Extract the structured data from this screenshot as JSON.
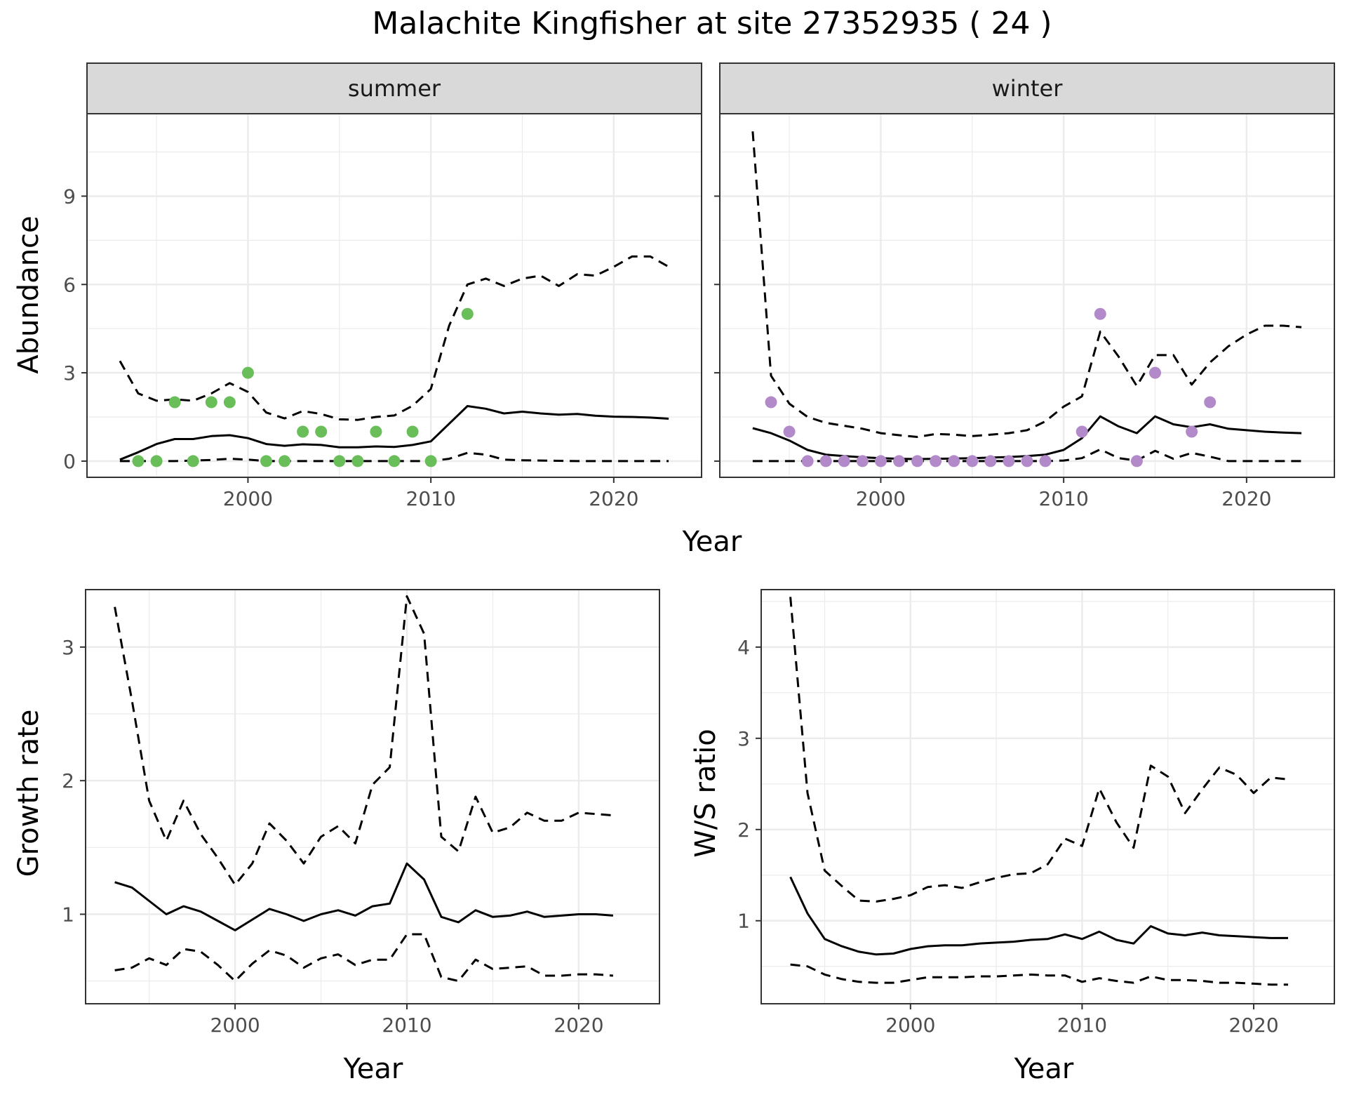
{
  "title": "Malachite Kingfisher at site 27352935 ( 24 )",
  "colors": {
    "summer_points": "#6ABE5A",
    "winter_points": "#B38AC9",
    "lines": "#000000",
    "grid": "#EBEBEB",
    "strip_fill": "#D9D9D9"
  },
  "chart_data": [
    {
      "type": "line",
      "panel": "summer",
      "strip_label": "summer",
      "xlabel": "Year",
      "ylabel": "Abundance",
      "xlim": [
        1991.2,
        2024.8
      ],
      "ylim": [
        -0.55,
        11.8
      ],
      "x_ticks": [
        2000,
        2010,
        2020
      ],
      "y_ticks": [
        0,
        3,
        6,
        9
      ],
      "observations": {
        "x": [
          1994,
          1995,
          1996,
          1997,
          1998,
          1999,
          2000,
          2001,
          2002,
          2003,
          2004,
          2005,
          2006,
          2007,
          2008,
          2009,
          2010,
          2012
        ],
        "y": [
          0,
          0,
          2,
          0,
          2,
          2,
          3,
          0,
          0,
          1,
          1,
          0,
          0,
          1,
          0,
          1,
          0,
          5
        ]
      },
      "series": [
        {
          "style": "solid",
          "x": [
            1993,
            1994,
            1995,
            1996,
            1997,
            1998,
            1999,
            2000,
            2001,
            2002,
            2003,
            2004,
            2005,
            2006,
            2007,
            2008,
            2009,
            2010,
            2011,
            2012,
            2013,
            2014,
            2015,
            2016,
            2017,
            2018,
            2019,
            2020,
            2021,
            2022,
            2023
          ],
          "y": [
            0.05,
            0.3,
            0.58,
            0.75,
            0.75,
            0.85,
            0.88,
            0.78,
            0.58,
            0.52,
            0.57,
            0.55,
            0.47,
            0.47,
            0.5,
            0.48,
            0.55,
            0.67,
            1.27,
            1.87,
            1.78,
            1.62,
            1.68,
            1.62,
            1.58,
            1.6,
            1.54,
            1.51,
            1.5,
            1.48,
            1.44
          ]
        },
        {
          "style": "dashed",
          "x": [
            1993,
            1994,
            1995,
            1996,
            1997,
            1998,
            1999,
            2000,
            2001,
            2002,
            2003,
            2004,
            2005,
            2006,
            2007,
            2008,
            2009,
            2010,
            2011,
            2012,
            2013,
            2014,
            2015,
            2016,
            2017,
            2018,
            2019,
            2020,
            2021,
            2022,
            2023
          ],
          "y": [
            3.4,
            2.3,
            2.05,
            2.1,
            2.05,
            2.3,
            2.65,
            2.35,
            1.65,
            1.45,
            1.7,
            1.6,
            1.42,
            1.4,
            1.5,
            1.55,
            1.88,
            2.45,
            4.6,
            6.0,
            6.2,
            5.95,
            6.2,
            6.3,
            5.95,
            6.35,
            6.3,
            6.6,
            6.95,
            6.95,
            6.6
          ]
        },
        {
          "style": "dashed",
          "x": [
            1993,
            1994,
            1995,
            1996,
            1997,
            1998,
            1999,
            2000,
            2001,
            2002,
            2003,
            2004,
            2005,
            2006,
            2007,
            2008,
            2009,
            2010,
            2011,
            2012,
            2013,
            2014,
            2015,
            2016,
            2017,
            2018,
            2019,
            2020,
            2021,
            2022,
            2023
          ],
          "y": [
            0,
            0,
            0,
            0,
            0.02,
            0.04,
            0.08,
            0.05,
            0,
            0,
            0,
            0,
            0,
            0,
            0,
            0,
            0,
            0,
            0.08,
            0.28,
            0.22,
            0.05,
            0.03,
            0.02,
            0.01,
            0,
            0,
            0,
            0,
            0,
            0
          ]
        }
      ]
    },
    {
      "type": "line",
      "panel": "winter",
      "strip_label": "winter",
      "xlabel": "Year",
      "ylabel": "Abundance",
      "xlim": [
        1991.2,
        2024.8
      ],
      "ylim": [
        -0.55,
        11.8
      ],
      "x_ticks": [
        2000,
        2010,
        2020
      ],
      "y_ticks": [
        0,
        3,
        6,
        9
      ],
      "observations": {
        "x": [
          1994,
          1995,
          1996,
          1997,
          1998,
          1999,
          2000,
          2001,
          2002,
          2003,
          2004,
          2005,
          2006,
          2007,
          2008,
          2009,
          2011,
          2012,
          2014,
          2015,
          2017,
          2018
        ],
        "y": [
          2,
          1,
          0,
          0,
          0,
          0,
          0,
          0,
          0,
          0,
          0,
          0,
          0,
          0,
          0,
          0,
          1,
          5,
          0,
          3,
          1,
          2
        ]
      },
      "series": [
        {
          "style": "solid",
          "x": [
            1993,
            1994,
            1995,
            1996,
            1997,
            1998,
            1999,
            2000,
            2001,
            2002,
            2003,
            2004,
            2005,
            2006,
            2007,
            2008,
            2009,
            2010,
            2011,
            2012,
            2013,
            2014,
            2015,
            2016,
            2017,
            2018,
            2019,
            2020,
            2021,
            2022,
            2023
          ],
          "y": [
            1.12,
            0.95,
            0.7,
            0.38,
            0.22,
            0.17,
            0.13,
            0.1,
            0.08,
            0.07,
            0.08,
            0.09,
            0.1,
            0.12,
            0.14,
            0.17,
            0.22,
            0.38,
            0.78,
            1.52,
            1.18,
            0.95,
            1.52,
            1.25,
            1.15,
            1.25,
            1.1,
            1.05,
            1.0,
            0.97,
            0.95
          ]
        },
        {
          "style": "dashed",
          "x": [
            1993,
            1994,
            1995,
            1996,
            1997,
            1998,
            1999,
            2000,
            2001,
            2002,
            2003,
            2004,
            2005,
            2006,
            2007,
            2008,
            2009,
            2010,
            2011,
            2012,
            2013,
            2014,
            2015,
            2016,
            2017,
            2018,
            2019,
            2020,
            2021,
            2022,
            2023
          ],
          "y": [
            11.2,
            2.9,
            1.95,
            1.5,
            1.3,
            1.2,
            1.1,
            0.95,
            0.88,
            0.82,
            0.92,
            0.9,
            0.85,
            0.9,
            0.95,
            1.05,
            1.35,
            1.85,
            2.2,
            4.4,
            3.55,
            2.55,
            3.6,
            3.6,
            2.6,
            3.35,
            3.9,
            4.3,
            4.6,
            4.6,
            4.55
          ]
        },
        {
          "style": "dashed",
          "x": [
            1993,
            1994,
            1995,
            1996,
            1997,
            1998,
            1999,
            2000,
            2001,
            2002,
            2003,
            2004,
            2005,
            2006,
            2007,
            2008,
            2009,
            2010,
            2011,
            2012,
            2013,
            2014,
            2015,
            2016,
            2017,
            2018,
            2019,
            2020,
            2021,
            2022,
            2023
          ],
          "y": [
            0,
            0,
            0,
            0,
            0,
            0,
            0,
            0,
            0,
            0,
            0,
            0,
            0,
            0,
            0,
            0,
            0,
            0.02,
            0.1,
            0.4,
            0.1,
            0.02,
            0.35,
            0.08,
            0.28,
            0.15,
            0,
            0,
            0,
            0,
            0
          ]
        }
      ]
    },
    {
      "type": "line",
      "panel": "growth",
      "xlabel": "Year",
      "ylabel": "Growth rate",
      "xlim": [
        1991.3,
        2024.7
      ],
      "ylim": [
        0.33,
        3.43
      ],
      "x_ticks": [
        2000,
        2010,
        2020
      ],
      "y_ticks": [
        1,
        2,
        3
      ],
      "series": [
        {
          "style": "solid",
          "x": [
            1993,
            1994,
            1995,
            1996,
            1997,
            1998,
            1999,
            2000,
            2001,
            2002,
            2003,
            2004,
            2005,
            2006,
            2007,
            2008,
            2009,
            2010,
            2011,
            2012,
            2013,
            2014,
            2015,
            2016,
            2017,
            2018,
            2019,
            2020,
            2021,
            2022
          ],
          "y": [
            1.24,
            1.2,
            1.1,
            1.0,
            1.06,
            1.02,
            0.95,
            0.88,
            0.96,
            1.04,
            1.0,
            0.95,
            1.0,
            1.03,
            0.99,
            1.06,
            1.08,
            1.38,
            1.26,
            0.98,
            0.94,
            1.03,
            0.98,
            0.99,
            1.02,
            0.98,
            0.99,
            1.0,
            1.0,
            0.99
          ]
        },
        {
          "style": "dashed",
          "x": [
            1993,
            1994,
            1995,
            1996,
            1997,
            1998,
            1999,
            2000,
            2001,
            2002,
            2003,
            2004,
            2005,
            2006,
            2007,
            2008,
            2009,
            2010,
            2011,
            2012,
            2013,
            2014,
            2015,
            2016,
            2017,
            2018,
            2019,
            2020,
            2021,
            2022
          ],
          "y": [
            3.3,
            2.6,
            1.85,
            1.55,
            1.85,
            1.6,
            1.42,
            1.22,
            1.38,
            1.68,
            1.55,
            1.38,
            1.58,
            1.66,
            1.53,
            1.97,
            2.1,
            3.38,
            3.1,
            1.58,
            1.47,
            1.88,
            1.61,
            1.65,
            1.76,
            1.7,
            1.7,
            1.76,
            1.75,
            1.74
          ]
        },
        {
          "style": "dashed",
          "x": [
            1993,
            1994,
            1995,
            1996,
            1997,
            1998,
            1999,
            2000,
            2001,
            2002,
            2003,
            2004,
            2005,
            2006,
            2007,
            2008,
            2009,
            2010,
            2011,
            2012,
            2013,
            2014,
            2015,
            2016,
            2017,
            2018,
            2019,
            2020,
            2021,
            2022
          ],
          "y": [
            0.58,
            0.6,
            0.67,
            0.62,
            0.74,
            0.72,
            0.62,
            0.5,
            0.63,
            0.73,
            0.69,
            0.6,
            0.67,
            0.7,
            0.62,
            0.66,
            0.66,
            0.85,
            0.85,
            0.53,
            0.5,
            0.66,
            0.59,
            0.6,
            0.61,
            0.54,
            0.54,
            0.55,
            0.55,
            0.54
          ]
        }
      ]
    },
    {
      "type": "line",
      "panel": "ws_ratio",
      "xlabel": "Year",
      "ylabel": "W/S ratio",
      "xlim": [
        1991.3,
        2024.7
      ],
      "ylim": [
        0.09,
        4.63
      ],
      "x_ticks": [
        2000,
        2010,
        2020
      ],
      "y_ticks": [
        1,
        2,
        3,
        4
      ],
      "series": [
        {
          "style": "solid",
          "x": [
            1993,
            1994,
            1995,
            1996,
            1997,
            1998,
            1999,
            2000,
            2001,
            2002,
            2003,
            2004,
            2005,
            2006,
            2007,
            2008,
            2009,
            2010,
            2011,
            2012,
            2013,
            2014,
            2015,
            2016,
            2017,
            2018,
            2019,
            2020,
            2021,
            2022
          ],
          "y": [
            1.48,
            1.08,
            0.8,
            0.72,
            0.66,
            0.63,
            0.64,
            0.69,
            0.72,
            0.73,
            0.73,
            0.75,
            0.76,
            0.77,
            0.79,
            0.8,
            0.85,
            0.8,
            0.88,
            0.79,
            0.75,
            0.94,
            0.86,
            0.84,
            0.87,
            0.84,
            0.83,
            0.82,
            0.81,
            0.81
          ]
        },
        {
          "style": "dashed",
          "x": [
            1993,
            1994,
            1995,
            1996,
            1997,
            1998,
            1999,
            2000,
            2001,
            2002,
            2003,
            2004,
            2005,
            2006,
            2007,
            2008,
            2009,
            2010,
            2011,
            2012,
            2013,
            2014,
            2015,
            2016,
            2017,
            2018,
            2019,
            2020,
            2021,
            2022
          ],
          "y": [
            4.55,
            2.4,
            1.55,
            1.38,
            1.22,
            1.21,
            1.24,
            1.28,
            1.37,
            1.39,
            1.36,
            1.42,
            1.47,
            1.51,
            1.52,
            1.62,
            1.9,
            1.82,
            2.45,
            2.08,
            1.8,
            2.7,
            2.58,
            2.18,
            2.44,
            2.68,
            2.6,
            2.4,
            2.57,
            2.55
          ]
        },
        {
          "style": "dashed",
          "x": [
            1993,
            1994,
            1995,
            1996,
            1997,
            1998,
            1999,
            2000,
            2001,
            2002,
            2003,
            2004,
            2005,
            2006,
            2007,
            2008,
            2009,
            2010,
            2011,
            2012,
            2013,
            2014,
            2015,
            2016,
            2017,
            2018,
            2019,
            2020,
            2021,
            2022
          ],
          "y": [
            0.52,
            0.5,
            0.41,
            0.36,
            0.33,
            0.32,
            0.32,
            0.35,
            0.38,
            0.38,
            0.38,
            0.39,
            0.39,
            0.4,
            0.41,
            0.4,
            0.4,
            0.33,
            0.37,
            0.34,
            0.32,
            0.39,
            0.35,
            0.35,
            0.34,
            0.32,
            0.32,
            0.31,
            0.3,
            0.3
          ]
        }
      ]
    }
  ]
}
